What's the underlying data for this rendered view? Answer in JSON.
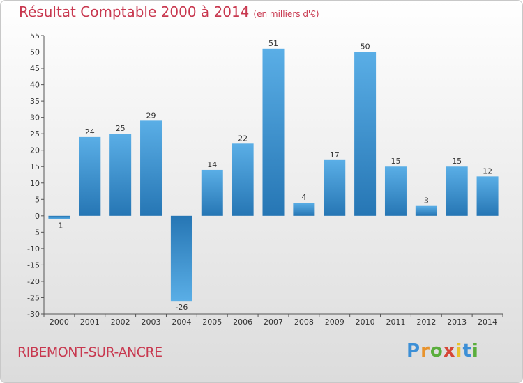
{
  "title": "Résultat Comptable 2000 à 2014",
  "unit": "(en milliers d'€)",
  "commune": "RIBEMONT-SUR-ANCRE",
  "logo": [
    "P",
    "r",
    "o",
    "x",
    "i",
    "t",
    "i"
  ],
  "logo_colors": [
    "#3c8fd6",
    "#e8932c",
    "#5aae3c",
    "#d64636",
    "#e8c22c",
    "#3c8fd6",
    "#5aae3c"
  ],
  "colors": {
    "bar_light": "#5aaee6",
    "bar_dark": "#2676b4",
    "title": "#c8384f"
  },
  "chart_data": {
    "type": "bar",
    "title": "Résultat Comptable 2000 à 2014",
    "ylabel": "(en milliers d'€)",
    "categories": [
      "2000",
      "2001",
      "2002",
      "2003",
      "2004",
      "2005",
      "2006",
      "2007",
      "2008",
      "2009",
      "2010",
      "2011",
      "2012",
      "2013",
      "2014"
    ],
    "values": [
      -1,
      24,
      25,
      29,
      -26,
      14,
      22,
      51,
      4,
      17,
      50,
      15,
      3,
      15,
      12
    ],
    "ylim": [
      -30,
      55
    ],
    "yticks": [
      -30,
      -25,
      -20,
      -15,
      -10,
      -5,
      0,
      5,
      10,
      15,
      20,
      25,
      30,
      35,
      40,
      45,
      50,
      55
    ],
    "grid": false
  }
}
